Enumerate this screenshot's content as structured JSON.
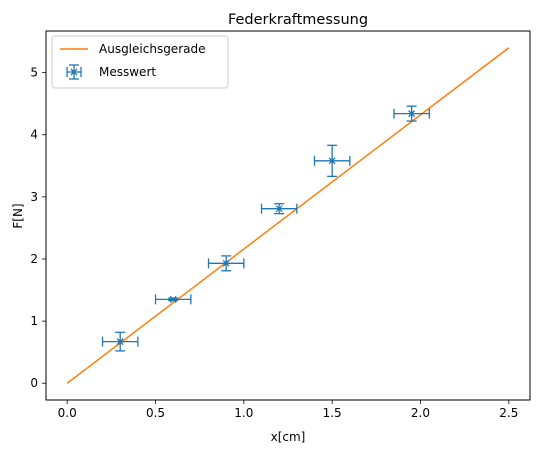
{
  "chart_data": {
    "type": "scatter",
    "title": "Federkraftmessung",
    "xlabel": "x[cm]",
    "ylabel": "F[N]",
    "xlim": [
      -0.12,
      2.62
    ],
    "ylim": [
      -0.27,
      5.67
    ],
    "xticks": [
      0.0,
      0.5,
      1.0,
      1.5,
      2.0,
      2.5
    ],
    "xtick_labels": [
      "0.0",
      "0.5",
      "1.0",
      "1.5",
      "2.0",
      "2.5"
    ],
    "yticks": [
      0,
      1,
      2,
      3,
      4,
      5
    ],
    "ytick_labels": [
      "0",
      "1",
      "2",
      "3",
      "4",
      "5"
    ],
    "grid": false,
    "legend_position": "top-left",
    "series": [
      {
        "name": "Ausgleichsgerade",
        "kind": "line",
        "color": "#ff7f0e",
        "x": [
          0.0,
          2.5
        ],
        "y": [
          0.0,
          5.4
        ]
      },
      {
        "name": "Messwert",
        "kind": "errorbar",
        "color": "#1f77b4",
        "marker": "x",
        "x": [
          0.3,
          0.6,
          0.9,
          1.2,
          1.5,
          1.95
        ],
        "y": [
          0.67,
          1.35,
          1.93,
          2.81,
          3.58,
          4.34
        ],
        "xerr": [
          0.1,
          0.1,
          0.1,
          0.1,
          0.1,
          0.1
        ],
        "yerr": [
          0.15,
          0.02,
          0.12,
          0.08,
          0.25,
          0.12
        ]
      }
    ]
  }
}
